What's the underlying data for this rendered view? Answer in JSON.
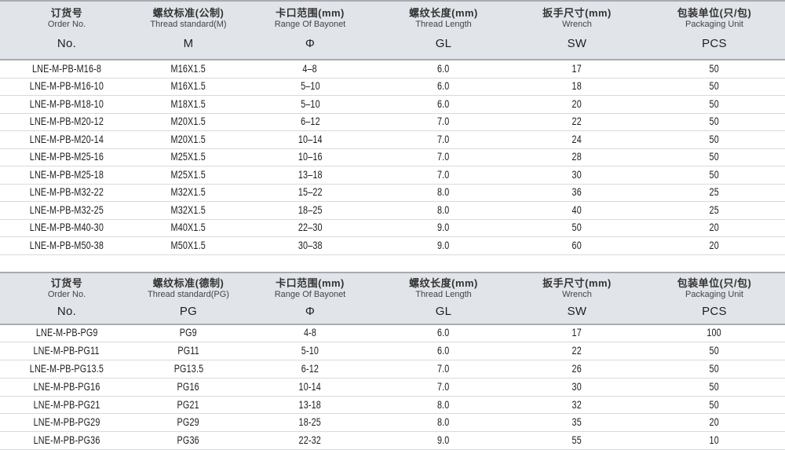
{
  "colors": {
    "header_bg": "#e1e4e9",
    "border_strong": "#a8abb0",
    "row_line": "#d8dadc",
    "text_zh": "#333333",
    "text_en": "#444444",
    "text_symbol": "#1f1f1f",
    "text_data": "#1c1c1c",
    "page_bg": "#ffffff"
  },
  "tables": [
    {
      "name": "metric-thread-table",
      "columns": [
        {
          "zh": "订货号",
          "en": "Order No.",
          "symbol": "No."
        },
        {
          "zh": "螺纹标准(公制)",
          "en": "Thread standard(M)",
          "symbol": "M"
        },
        {
          "zh": "卡口范围(mm)",
          "en": "Range Of Bayonet",
          "symbol": "Φ"
        },
        {
          "zh": "螺纹长度(mm)",
          "en": "Thread Length",
          "symbol": "GL"
        },
        {
          "zh": "扳手尺寸(mm)",
          "en": "Wrench",
          "symbol": "SW"
        },
        {
          "zh": "包装单位(只/包)",
          "en": "Packaging Unit",
          "symbol": "PCS"
        }
      ],
      "rows": [
        [
          "LNE-M-PB-M16-8",
          "M16X1.5",
          "4–8",
          "6.0",
          "17",
          "50"
        ],
        [
          "LNE-M-PB-M16-10",
          "M16X1.5",
          "5–10",
          "6.0",
          "18",
          "50"
        ],
        [
          "LNE-M-PB-M18-10",
          "M18X1.5",
          "5–10",
          "6.0",
          "20",
          "50"
        ],
        [
          "LNE-M-PB-M20-12",
          "M20X1.5",
          "6–12",
          "7.0",
          "22",
          "50"
        ],
        [
          "LNE-M-PB-M20-14",
          "M20X1.5",
          "10–14",
          "7.0",
          "24",
          "50"
        ],
        [
          "LNE-M-PB-M25-16",
          "M25X1.5",
          "10–16",
          "7.0",
          "28",
          "50"
        ],
        [
          "LNE-M-PB-M25-18",
          "M25X1.5",
          "13–18",
          "7.0",
          "30",
          "50"
        ],
        [
          "LNE-M-PB-M32-22",
          "M32X1.5",
          "15–22",
          "8.0",
          "36",
          "25"
        ],
        [
          "LNE-M-PB-M32-25",
          "M32X1.5",
          "18–25",
          "8.0",
          "40",
          "25"
        ],
        [
          "LNE-M-PB-M40-30",
          "M40X1.5",
          "22–30",
          "9.0",
          "50",
          "20"
        ],
        [
          "LNE-M-PB-M50-38",
          "M50X1.5",
          "30–38",
          "9.0",
          "60",
          "20"
        ]
      ]
    },
    {
      "name": "pg-thread-table",
      "columns": [
        {
          "zh": "订货号",
          "en": "Order No.",
          "symbol": "No."
        },
        {
          "zh": "螺纹标准(德制)",
          "en": "Thread standard(PG)",
          "symbol": "PG"
        },
        {
          "zh": "卡口范围(mm)",
          "en": "Range Of Bayonet",
          "symbol": "Φ"
        },
        {
          "zh": "螺纹长度(mm)",
          "en": "Thread Length",
          "symbol": "GL"
        },
        {
          "zh": "扳手尺寸(mm)",
          "en": "Wrench",
          "symbol": "SW"
        },
        {
          "zh": "包装单位(只/包)",
          "en": "Packaging Unit",
          "symbol": "PCS"
        }
      ],
      "rows": [
        [
          "LNE-M-PB-PG9",
          "PG9",
          "4-8",
          "6.0",
          "17",
          "100"
        ],
        [
          "LNE-M-PB-PG11",
          "PG11",
          "5-10",
          "6.0",
          "22",
          "50"
        ],
        [
          "LNE-M-PB-PG13.5",
          "PG13.5",
          "6-12",
          "7.0",
          "26",
          "50"
        ],
        [
          "LNE-M-PB-PG16",
          "PG16",
          "10-14",
          "7.0",
          "30",
          "50"
        ],
        [
          "LNE-M-PB-PG21",
          "PG21",
          "13-18",
          "8.0",
          "32",
          "50"
        ],
        [
          "LNE-M-PB-PG29",
          "PG29",
          "18-25",
          "8.0",
          "35",
          "20"
        ],
        [
          "LNE-M-PB-PG36",
          "PG36",
          "22-32",
          "9.0",
          "55",
          "10"
        ]
      ]
    }
  ],
  "column_widths_percent": [
    17,
    14,
    17,
    17,
    17,
    18
  ]
}
